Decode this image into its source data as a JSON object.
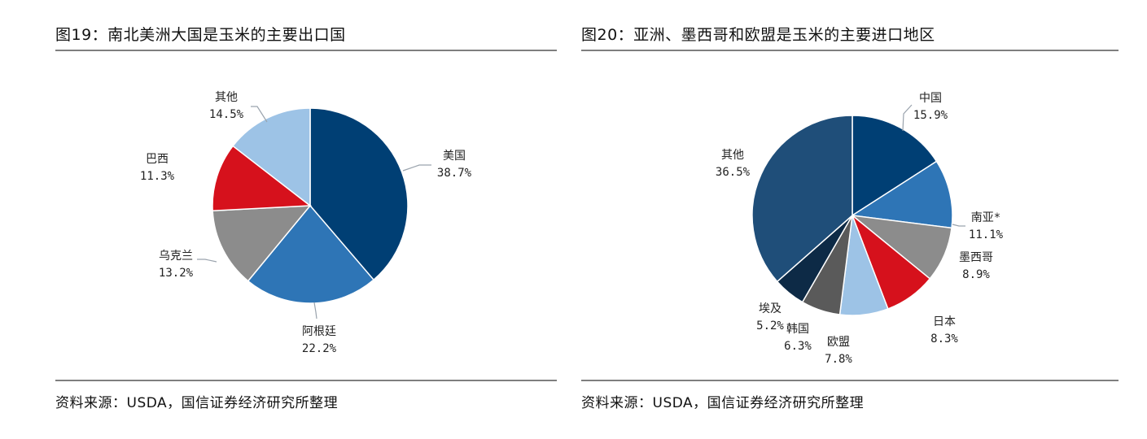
{
  "chart_data": [
    {
      "type": "pie",
      "title": "图19：南北美洲大国是玉米的主要出口国",
      "slices": [
        {
          "label": "美国",
          "value": 38.7,
          "value_label": "38.7%",
          "color": "#003f74"
        },
        {
          "label": "阿根廷",
          "value": 22.2,
          "value_label": "22.2%",
          "color": "#2e75b6"
        },
        {
          "label": "乌克兰",
          "value": 13.2,
          "value_label": "13.2%",
          "color": "#8c8c8c"
        },
        {
          "label": "巴西",
          "value": 11.3,
          "value_label": "11.3%",
          "color": "#d6111c"
        },
        {
          "label": "其他",
          "value": 14.5,
          "value_label": "14.5%",
          "color": "#9dc3e6"
        }
      ],
      "start_angle_deg": 0,
      "direction": "clockwise",
      "source": "资料来源：USDA，国信证券经济研究所整理"
    },
    {
      "type": "pie",
      "title": "图20：亚洲、墨西哥和欧盟是玉米的主要进口地区",
      "slices": [
        {
          "label": "中国",
          "value": 15.9,
          "value_label": "15.9%",
          "color": "#003f74"
        },
        {
          "label": "南亚*",
          "value": 11.1,
          "value_label": "11.1%",
          "color": "#2e75b6"
        },
        {
          "label": "墨西哥",
          "value": 8.9,
          "value_label": "8.9%",
          "color": "#8c8c8c"
        },
        {
          "label": "日本",
          "value": 8.3,
          "value_label": "8.3%",
          "color": "#d6111c"
        },
        {
          "label": "欧盟",
          "value": 7.8,
          "value_label": "7.8%",
          "color": "#9dc3e6"
        },
        {
          "label": "韩国",
          "value": 6.3,
          "value_label": "6.3%",
          "color": "#5a5a5a"
        },
        {
          "label": "埃及",
          "value": 5.2,
          "value_label": "5.2%",
          "color": "#0d2a46"
        },
        {
          "label": "其他",
          "value": 36.5,
          "value_label": "36.5%",
          "color": "#1f4e79"
        }
      ],
      "start_angle_deg": 0,
      "direction": "clockwise",
      "source": "资料来源：USDA，国信证券经济研究所整理"
    }
  ]
}
